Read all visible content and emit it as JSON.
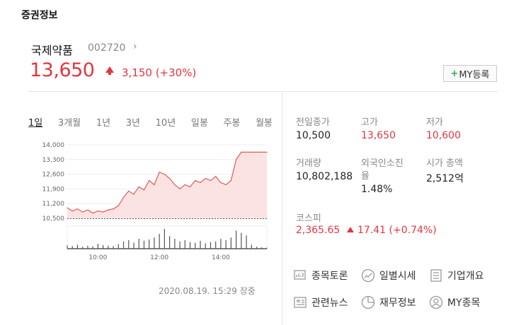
{
  "section_title": "증권정보",
  "stock": {
    "name": "국제약품",
    "code": "002720",
    "link_glyph": "›",
    "price": "13,650",
    "change": "3,150 (+30%)",
    "my_button_plus": "+",
    "my_button_label": "MY등록"
  },
  "colors": {
    "up": "#e3363f",
    "accent_green": "#2cad3f"
  },
  "tabs": [
    "1일",
    "3개월",
    "1년",
    "3년",
    "10년",
    "일봉",
    "주봉",
    "월봉"
  ],
  "active_tab": "1일",
  "chart_data": {
    "type": "area",
    "y_ticks": [
      "14,000",
      "13,300",
      "12,600",
      "11,900",
      "11,200",
      "10,500"
    ],
    "x_ticks": [
      "10:00",
      "12:00",
      "14:00"
    ],
    "ylim": [
      10500,
      14000
    ],
    "prev_close": 10500,
    "price_series": {
      "x": [
        "09:00",
        "09:10",
        "09:20",
        "09:30",
        "09:40",
        "09:50",
        "10:00",
        "10:10",
        "10:20",
        "10:30",
        "10:40",
        "10:50",
        "11:00",
        "11:10",
        "11:20",
        "11:30",
        "11:40",
        "11:50",
        "12:00",
        "12:10",
        "12:20",
        "12:30",
        "12:40",
        "12:50",
        "13:00",
        "13:10",
        "13:20",
        "13:30",
        "13:40",
        "13:50",
        "14:00",
        "14:10",
        "14:20",
        "14:30",
        "14:40",
        "14:50",
        "15:00",
        "15:10",
        "15:20",
        "15:30"
      ],
      "values": [
        11000,
        10850,
        10950,
        10800,
        10900,
        10750,
        10850,
        10800,
        10900,
        10950,
        11100,
        11500,
        11800,
        11650,
        12000,
        11850,
        12300,
        12100,
        12700,
        12600,
        12400,
        12100,
        11900,
        12100,
        12000,
        12300,
        12200,
        12400,
        12300,
        12500,
        12200,
        12100,
        12300,
        13300,
        13650,
        13650,
        13650,
        13650,
        13650,
        13650
      ]
    },
    "volume_series": {
      "x": [
        "09:00",
        "09:10",
        "09:20",
        "09:30",
        "09:40",
        "09:50",
        "10:00",
        "10:10",
        "10:20",
        "10:30",
        "10:40",
        "10:50",
        "11:00",
        "11:10",
        "11:20",
        "11:30",
        "11:40",
        "11:50",
        "12:00",
        "12:10",
        "12:20",
        "12:30",
        "12:40",
        "12:50",
        "13:00",
        "13:10",
        "13:20",
        "13:30",
        "13:40",
        "13:50",
        "14:00",
        "14:10",
        "14:20",
        "14:30",
        "14:40",
        "14:50",
        "15:00",
        "15:10",
        "15:20",
        "15:30"
      ],
      "values": [
        10,
        8,
        12,
        6,
        9,
        7,
        15,
        11,
        9,
        8,
        14,
        22,
        26,
        18,
        30,
        24,
        28,
        34,
        45,
        60,
        38,
        30,
        22,
        26,
        20,
        18,
        24,
        16,
        20,
        22,
        30,
        26,
        34,
        55,
        48,
        40,
        12,
        6,
        4,
        3
      ]
    }
  },
  "timestamp": "2020.08.19. 15:29 장중",
  "info": {
    "prev_close_label": "전일종가",
    "prev_close": "10,500",
    "high_label": "고가",
    "high": "13,650",
    "low_label": "저가",
    "low": "10,600",
    "volume_label": "거래량",
    "volume": "10,802,188",
    "foreign_label_1": "외국인소진",
    "foreign_label_2": "율",
    "foreign": "1.48%",
    "mcap_label": "시가 총액",
    "mcap": "2,512억"
  },
  "kospi": {
    "label": "코스피",
    "value": "2,365.65",
    "change": "17.41 (+0.74%)"
  },
  "services": [
    {
      "label": "종목토론",
      "icon": "discussion-icon"
    },
    {
      "label": "일별시세",
      "icon": "trend-icon"
    },
    {
      "label": "기업개요",
      "icon": "list-icon"
    },
    {
      "label": "관련뉴스",
      "icon": "news-icon"
    },
    {
      "label": "재무정보",
      "icon": "piechart-icon"
    },
    {
      "label": "MY종목",
      "icon": "user-icon"
    }
  ]
}
